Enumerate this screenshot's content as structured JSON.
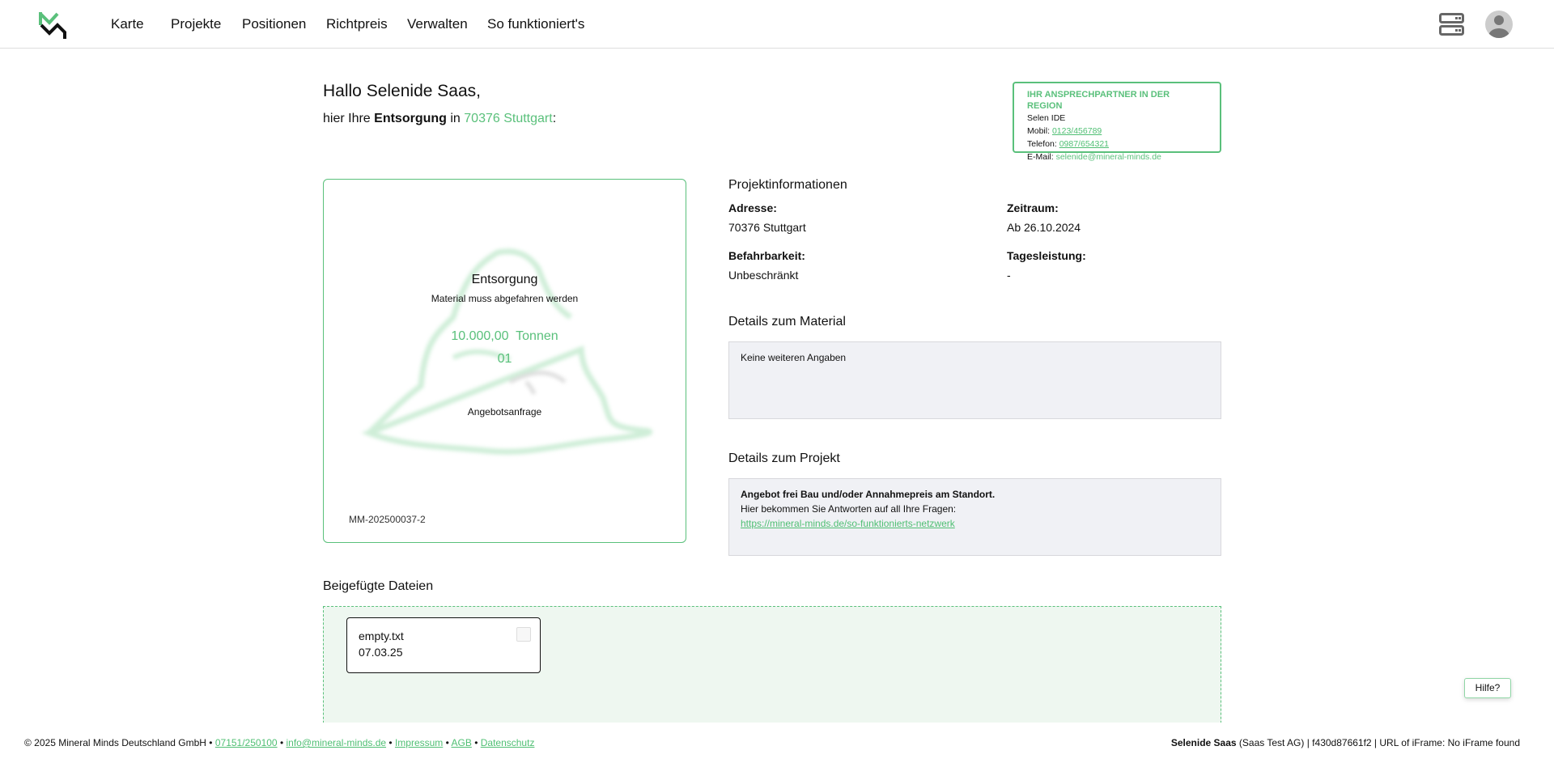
{
  "header": {
    "nav": [
      "Karte",
      "Projekte",
      "Positionen",
      "Richtpreis",
      "Verwalten",
      "So funktioniert's"
    ],
    "icons": [
      "logo-mm",
      "server-icon",
      "avatar-icon"
    ]
  },
  "greeting": {
    "hello": "Hallo Selenide Saas,",
    "prefix": "hier Ihre",
    "type": "Entsorgung",
    "in": "in",
    "location": "70376 Stuttgart",
    "suffix": ":"
  },
  "contact": {
    "title": "IHR ANSPRECHPARTNER IN DER REGION",
    "name": "Selen IDE",
    "mobil_label": "Mobil:",
    "mobil": "0123/456789",
    "telefon_label": "Telefon:",
    "telefon": "0987/654321",
    "email_label": "E-Mail:",
    "email": "selenide@mineral-minds.de"
  },
  "card": {
    "title": "Entsorgung",
    "subtitle": "Material muss abgefahren werden",
    "amount": "10.000,00",
    "unit": "Tonnen",
    "code": "01",
    "status": "Angebotsanfrage",
    "id": "MM-202500037-2"
  },
  "info": {
    "title": "Projektinformationen",
    "address_label": "Adresse:",
    "address": "70376 Stuttgart",
    "period_label": "Zeitraum:",
    "period": "Ab 26.10.2024",
    "access_label": "Befahrbarkeit:",
    "access": "Unbeschränkt",
    "daily_label": "Tagesleistung:",
    "daily": "-"
  },
  "material": {
    "title": "Details zum Material",
    "text": "Keine weiteren Angaben"
  },
  "project": {
    "title": "Details zum Projekt",
    "bold": "Angebot frei Bau und/oder Annahmepreis am Standort.",
    "text": "Hier bekommen Sie Antworten auf all Ihre Fragen:",
    "link": "https://mineral-minds.de/so-funktionierts-netzwerk"
  },
  "files": {
    "title": "Beigefügte Dateien",
    "items": [
      {
        "name": "empty.txt",
        "date": "07.03.25"
      }
    ]
  },
  "help": "Hilfe?",
  "footer": {
    "copyright": "© 2025 Mineral Minds Deutschland GmbH",
    "sep": "•",
    "phone": "07151/250100",
    "email": "info@mineral-minds.de",
    "impressum": "Impressum",
    "agb": "AGB",
    "datenschutz": "Datenschutz",
    "user": "Selenide Saas",
    "company": "(Saas Test AG)",
    "meta": "| f430d87661f2 | URL of iFrame: No iFrame found"
  },
  "colors": {
    "accent": "#5ac07b",
    "box_bg": "#f0f1f5",
    "drop_bg": "#eef7f0"
  }
}
